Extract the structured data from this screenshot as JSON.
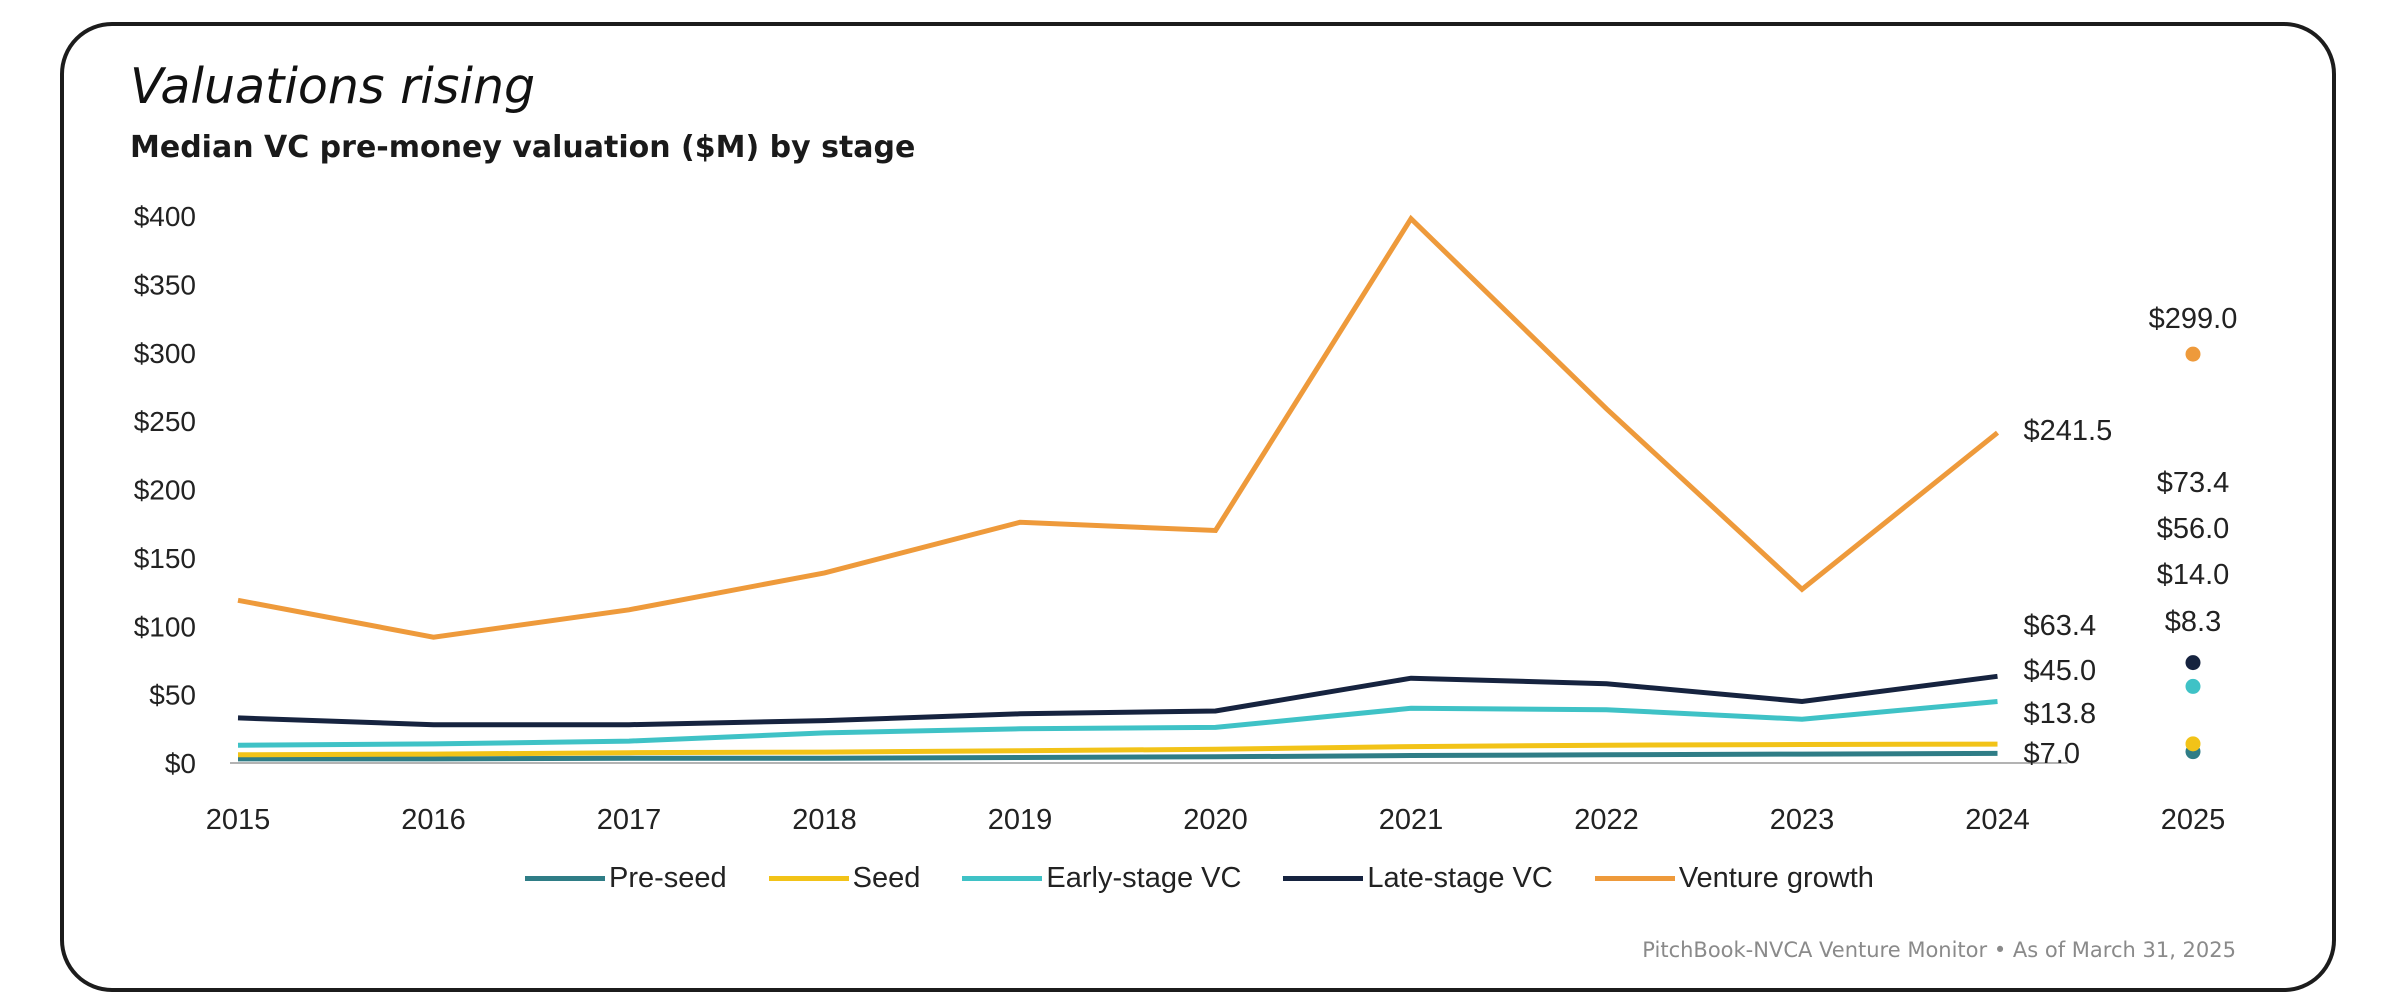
{
  "chart_data": {
    "type": "line",
    "title": "Valuations rising",
    "subtitle": "Median VC pre-money valuation ($M) by stage",
    "x": [
      "2015",
      "2016",
      "2017",
      "2018",
      "2019",
      "2020",
      "2021",
      "2022",
      "2023",
      "2024",
      "2025"
    ],
    "y_ticks": [
      "$0",
      "$50",
      "$100",
      "$150",
      "$200",
      "$250",
      "$300",
      "$350",
      "$400"
    ],
    "ylim": [
      0,
      400
    ],
    "grid": false,
    "legend_position": "bottom",
    "series": [
      {
        "name": "Pre-seed",
        "color": "#2f7d86",
        "values": [
          3,
          3,
          3.5,
          3.5,
          4,
          4.5,
          5.5,
          6,
          6.5,
          7.0,
          8.3
        ],
        "end_label": "$7.0",
        "point_label": "$8.3"
      },
      {
        "name": "Seed",
        "color": "#f2c318",
        "values": [
          6,
          6.5,
          7.5,
          8,
          9,
          10,
          12,
          13,
          13.5,
          13.8,
          14.0
        ],
        "end_label": "$13.8",
        "point_label": "$14.0"
      },
      {
        "name": "Early-stage VC",
        "color": "#3fc2c6",
        "values": [
          13,
          14,
          16,
          22,
          25,
          26,
          40,
          39,
          32,
          45.0,
          56.0
        ],
        "end_label": "$45.0",
        "point_label": "$56.0"
      },
      {
        "name": "Late-stage VC",
        "color": "#16233f",
        "values": [
          33,
          28,
          28,
          31,
          36,
          38,
          62,
          58,
          45,
          63.4,
          73.4
        ],
        "end_label": "$63.4",
        "point_label": "$73.4"
      },
      {
        "name": "Venture growth",
        "color": "#ee9a3b",
        "values": [
          119,
          92,
          112,
          139,
          176,
          170,
          398,
          259,
          127,
          241.5,
          299.0
        ],
        "end_label": "$241.5",
        "point_label": "$299.0"
      }
    ]
  },
  "source": "PitchBook-NVCA Venture Monitor  •  As of March 31, 2025"
}
